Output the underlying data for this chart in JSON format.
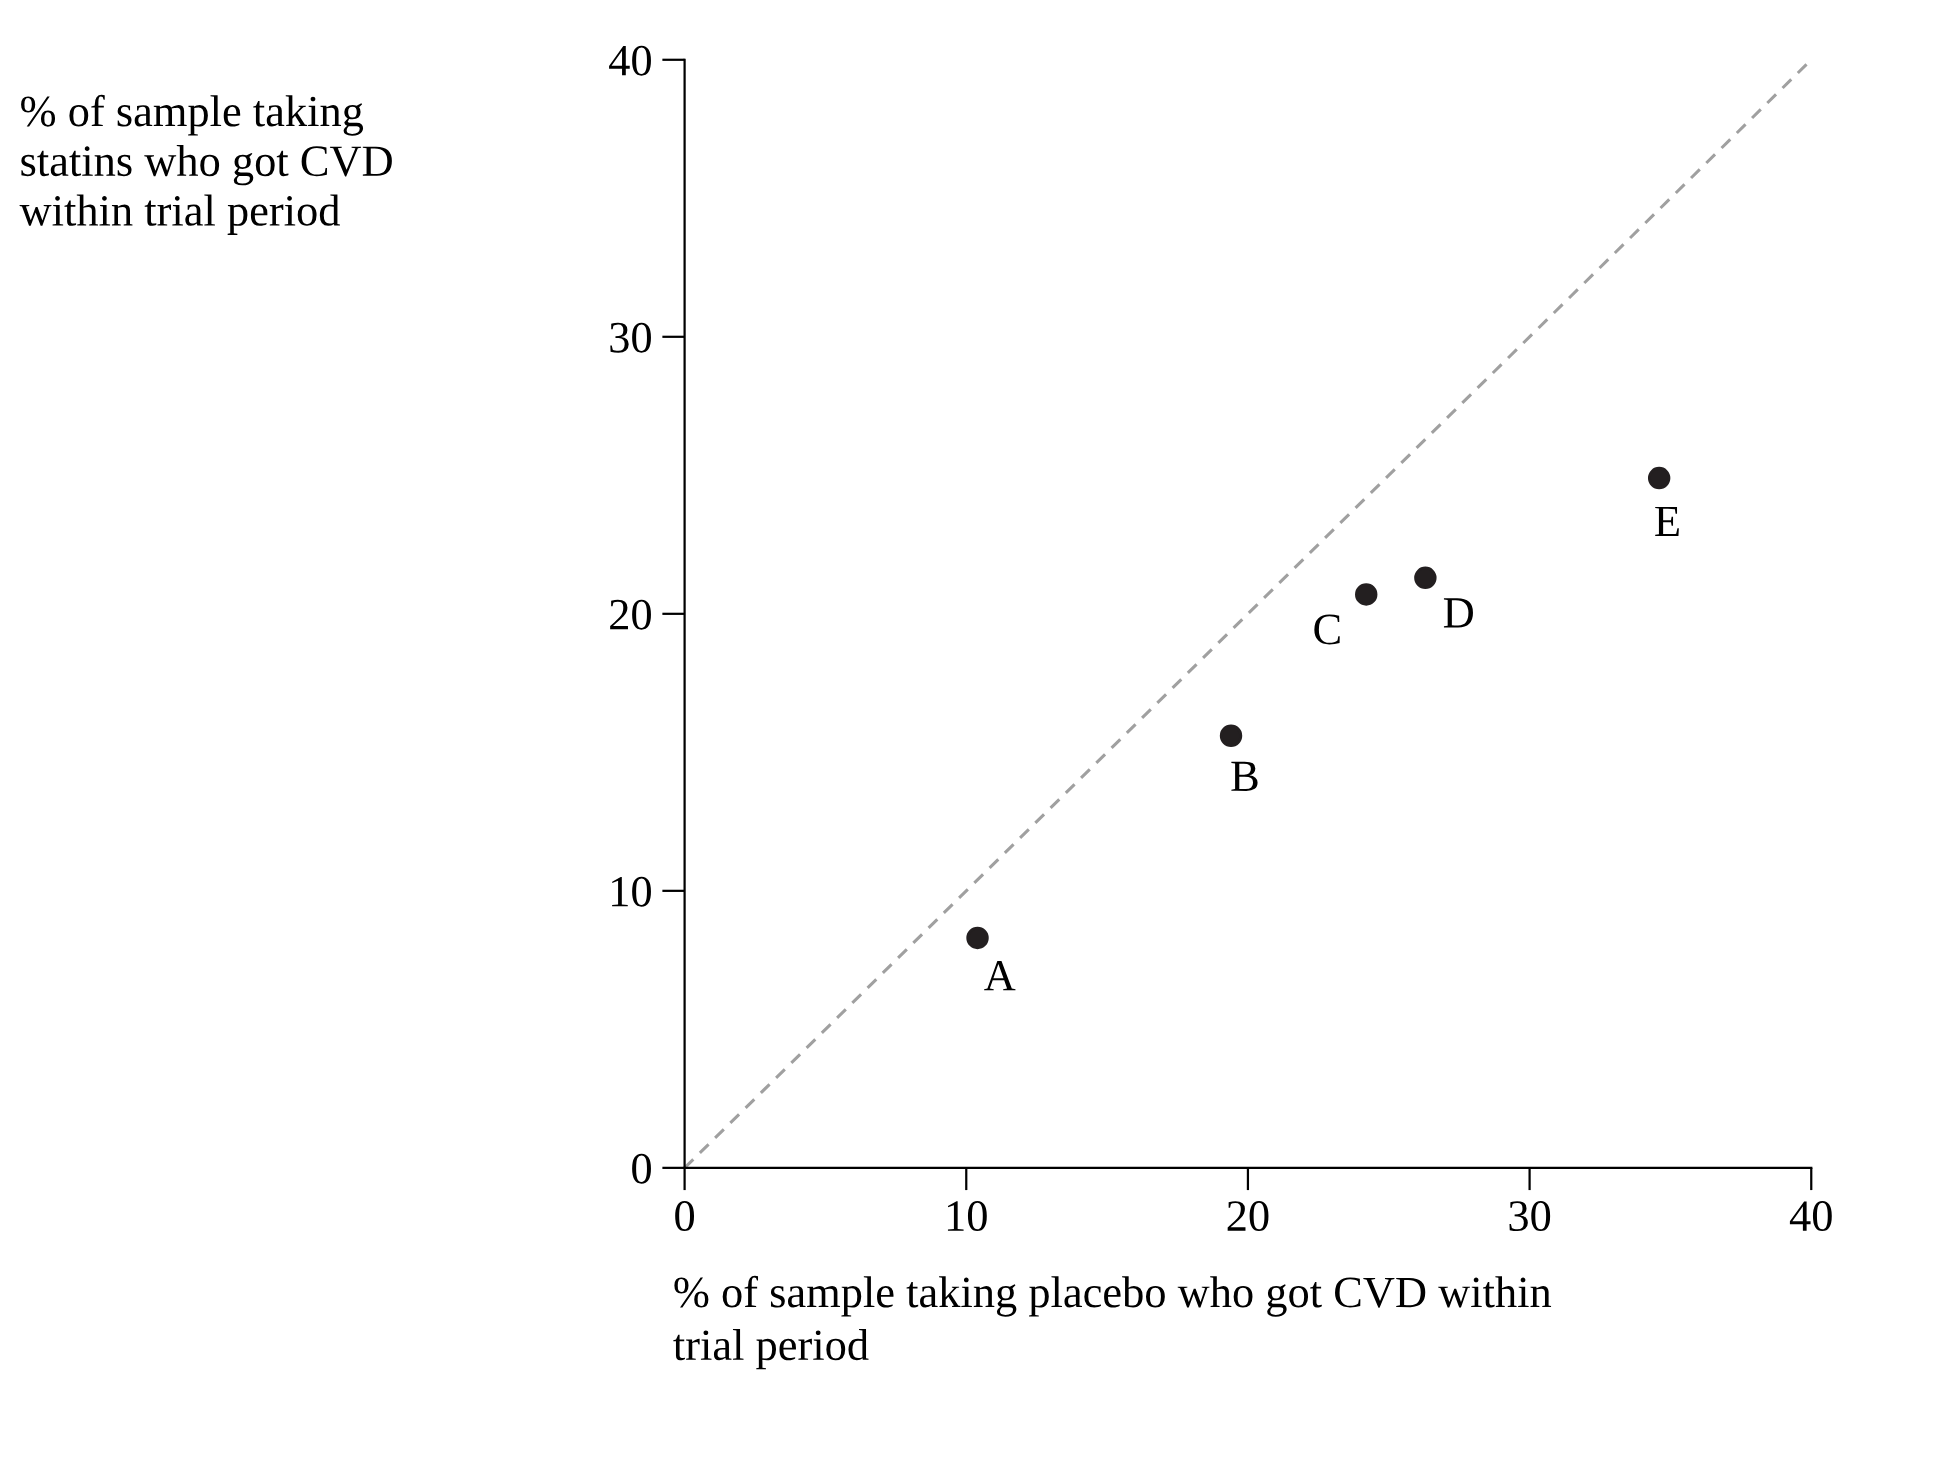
{
  "chart_data": {
    "type": "scatter",
    "xlabel": "% of sample taking placebo who got CVD within\ntrial period",
    "ylabel": "% of sample taking\nstatins who got CVD\nwithin trial period",
    "xlim": [
      0,
      40
    ],
    "ylim": [
      0,
      40
    ],
    "xticks": [
      0,
      10,
      20,
      30,
      40
    ],
    "yticks": [
      0,
      10,
      20,
      30,
      40
    ],
    "grid": false,
    "marker": "circle",
    "series": [
      {
        "color": "#231f20",
        "x": [
          10.4,
          19.4,
          24.2,
          26.3,
          34.6
        ],
        "values": [
          8.3,
          15.6,
          20.7,
          21.3,
          24.9
        ]
      },
      {
        "type": "line",
        "color": "#a0a0a0",
        "line_style": "dashed",
        "marker": "none",
        "x": [
          0,
          40
        ],
        "values": [
          0,
          40
        ]
      }
    ],
    "annotations": [
      {
        "text": "A",
        "x": 10.4,
        "y": 8.3
      },
      {
        "text": "B",
        "x": 19.4,
        "y": 15.6
      },
      {
        "text": "C",
        "x": 24.2,
        "y": 20.7
      },
      {
        "text": "D",
        "x": 26.3,
        "y": 21.3
      },
      {
        "text": "E",
        "x": 34.6,
        "y": 24.9
      }
    ]
  }
}
